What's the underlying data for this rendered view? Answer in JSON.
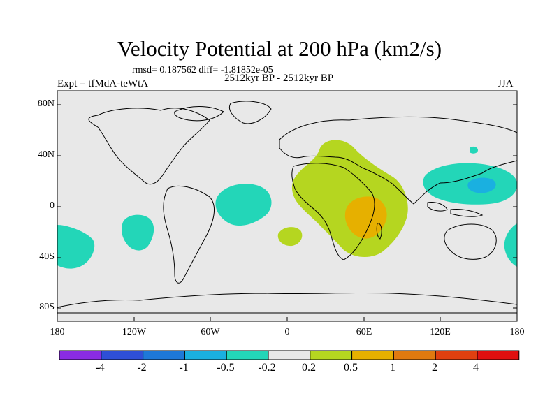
{
  "title": "Velocity Potential at 200 hPa (km2/s)",
  "stats_line": "rmsd= 0.187562 diff= -1.81852e-05",
  "experiment": "Expt = tfMdA-teWtA",
  "period": "2512kyr BP - 2512kyr BP",
  "season": "JJA",
  "y_axis_labels": [
    "80N",
    "40N",
    "0",
    "40S",
    "80S"
  ],
  "x_axis_labels": [
    "180",
    "120W",
    "60W",
    "0",
    "60E",
    "120E",
    "180"
  ],
  "colorbar": {
    "labels": [
      "-4",
      "-2",
      "-1",
      "-0.5",
      "-0.2",
      "0.2",
      "0.5",
      "1",
      "2",
      "4"
    ],
    "colors": [
      "#8a2be2",
      "#2f4fd6",
      "#1e78d8",
      "#1ab0e0",
      "#23d6b8",
      "#e8e8e8",
      "#b5d620",
      "#e6b000",
      "#e07a10",
      "#e04010",
      "#e01010"
    ]
  },
  "colors": {
    "background": "#e8e8e8",
    "neg_weak": "#23d6b8",
    "neg_mid": "#1ab0e0",
    "pos_weak": "#b5d620",
    "pos_mid": "#e6b000",
    "coast": "#000000"
  }
}
